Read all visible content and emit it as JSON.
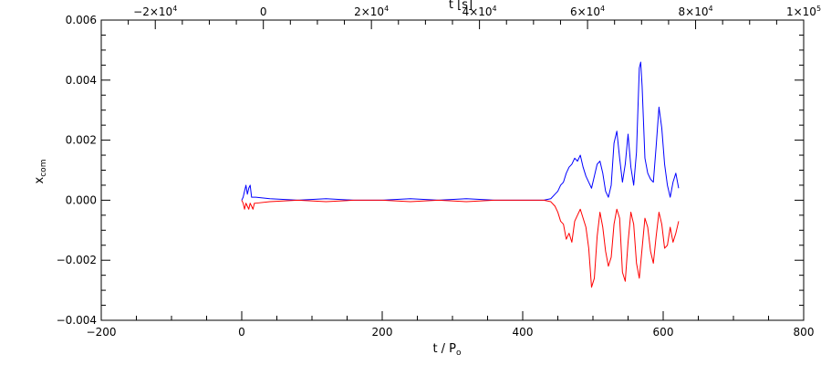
{
  "chart_data": {
    "type": "line",
    "xlabel": "t / P",
    "xlabel_sub": "o",
    "ylabel": "x",
    "ylabel_sub": "com",
    "top_xlabel": "t [s]",
    "xlim": [
      -200,
      800
    ],
    "ylim": [
      -0.004,
      0.006
    ],
    "x_ticks": [
      -200,
      0,
      200,
      400,
      600,
      800
    ],
    "x_tick_labels": [
      "−200",
      "0",
      "200",
      "400",
      "600",
      "800"
    ],
    "y_ticks": [
      -0.004,
      -0.002,
      0.0,
      0.002,
      0.004,
      0.006
    ],
    "y_tick_labels": [
      "−0.004",
      "−0.002",
      "0.000",
      "0.002",
      "0.004",
      "0.006"
    ],
    "top_xlim": [
      -30000,
      100000
    ],
    "top_ticks": [
      {
        "value": -20000,
        "mantissa": "−2×10",
        "exp": "4"
      },
      {
        "value": 0,
        "mantissa": "0",
        "exp": ""
      },
      {
        "value": 20000,
        "mantissa": "2×10",
        "exp": "4"
      },
      {
        "value": 40000,
        "mantissa": "4×10",
        "exp": "4"
      },
      {
        "value": 60000,
        "mantissa": "6×10",
        "exp": "4"
      },
      {
        "value": 80000,
        "mantissa": "8×10",
        "exp": "4"
      },
      {
        "value": 100000,
        "mantissa": "1×10",
        "exp": "5"
      }
    ],
    "grid": false,
    "series": [
      {
        "color": "#0000ff",
        "x": [
          0,
          2,
          4,
          6,
          8,
          10,
          12,
          14,
          16,
          18,
          20,
          40,
          80,
          120,
          160,
          200,
          240,
          280,
          320,
          360,
          400,
          430,
          440,
          446,
          450,
          454,
          458,
          462,
          466,
          470,
          474,
          478,
          482,
          486,
          490,
          494,
          498,
          502,
          506,
          510,
          514,
          518,
          522,
          526,
          530,
          534,
          538,
          542,
          546,
          550,
          554,
          558,
          562,
          566,
          568,
          570,
          574,
          578,
          582,
          586,
          590,
          594,
          598,
          602,
          606,
          610,
          614,
          618,
          622
        ],
        "values": [
          0.0,
          0.0001,
          0.0003,
          0.0005,
          0.0002,
          0.0004,
          0.0005,
          0.0001,
          0.0001,
          0.0001,
          0.0001,
          5e-05,
          0.0,
          5e-05,
          0.0,
          0.0,
          5e-05,
          0.0,
          5e-05,
          0.0,
          0.0,
          0.0,
          5e-05,
          0.0002,
          0.0003,
          0.0005,
          0.0006,
          0.0009,
          0.0011,
          0.0012,
          0.0014,
          0.0013,
          0.0015,
          0.0011,
          0.0008,
          0.0006,
          0.0004,
          0.0008,
          0.0012,
          0.0013,
          0.0009,
          0.0003,
          0.0001,
          0.0005,
          0.0019,
          0.0023,
          0.0014,
          0.0006,
          0.0012,
          0.0022,
          0.0011,
          0.0005,
          0.0016,
          0.0044,
          0.0046,
          0.0038,
          0.0014,
          0.0009,
          0.0007,
          0.0006,
          0.0018,
          0.0031,
          0.0024,
          0.0012,
          0.0005,
          0.0001,
          0.0006,
          0.0009,
          0.0004
        ]
      },
      {
        "color": "#ff0000",
        "x": [
          0,
          2,
          4,
          6,
          8,
          10,
          12,
          14,
          16,
          18,
          20,
          40,
          80,
          120,
          160,
          200,
          240,
          280,
          320,
          360,
          400,
          430,
          440,
          446,
          450,
          454,
          458,
          462,
          466,
          470,
          474,
          478,
          482,
          486,
          490,
          494,
          498,
          502,
          506,
          510,
          514,
          518,
          522,
          526,
          530,
          534,
          538,
          542,
          546,
          550,
          554,
          558,
          562,
          566,
          570,
          574,
          578,
          582,
          586,
          590,
          594,
          598,
          602,
          606,
          610,
          614,
          618,
          622
        ],
        "values": [
          0.0,
          -0.0001,
          -0.0003,
          -0.0001,
          -0.0002,
          -0.0003,
          -0.0001,
          -0.0002,
          -0.0003,
          -0.0001,
          -0.0001,
          -5e-05,
          0.0,
          -5e-05,
          0.0,
          0.0,
          -5e-05,
          0.0,
          -5e-05,
          0.0,
          0.0,
          0.0,
          -5e-05,
          -0.0002,
          -0.0004,
          -0.0007,
          -0.0008,
          -0.0013,
          -0.0011,
          -0.0014,
          -0.0007,
          -0.0005,
          -0.0003,
          -0.0006,
          -0.0009,
          -0.0016,
          -0.0029,
          -0.0026,
          -0.0012,
          -0.0004,
          -0.0009,
          -0.0017,
          -0.0022,
          -0.0019,
          -0.0008,
          -0.0003,
          -0.0006,
          -0.0024,
          -0.0027,
          -0.0014,
          -0.0004,
          -0.0008,
          -0.0021,
          -0.0026,
          -0.0016,
          -0.0006,
          -0.0009,
          -0.0017,
          -0.0021,
          -0.0012,
          -0.0004,
          -0.0008,
          -0.0016,
          -0.0015,
          -0.0009,
          -0.0014,
          -0.0011,
          -0.0007
        ]
      }
    ]
  }
}
